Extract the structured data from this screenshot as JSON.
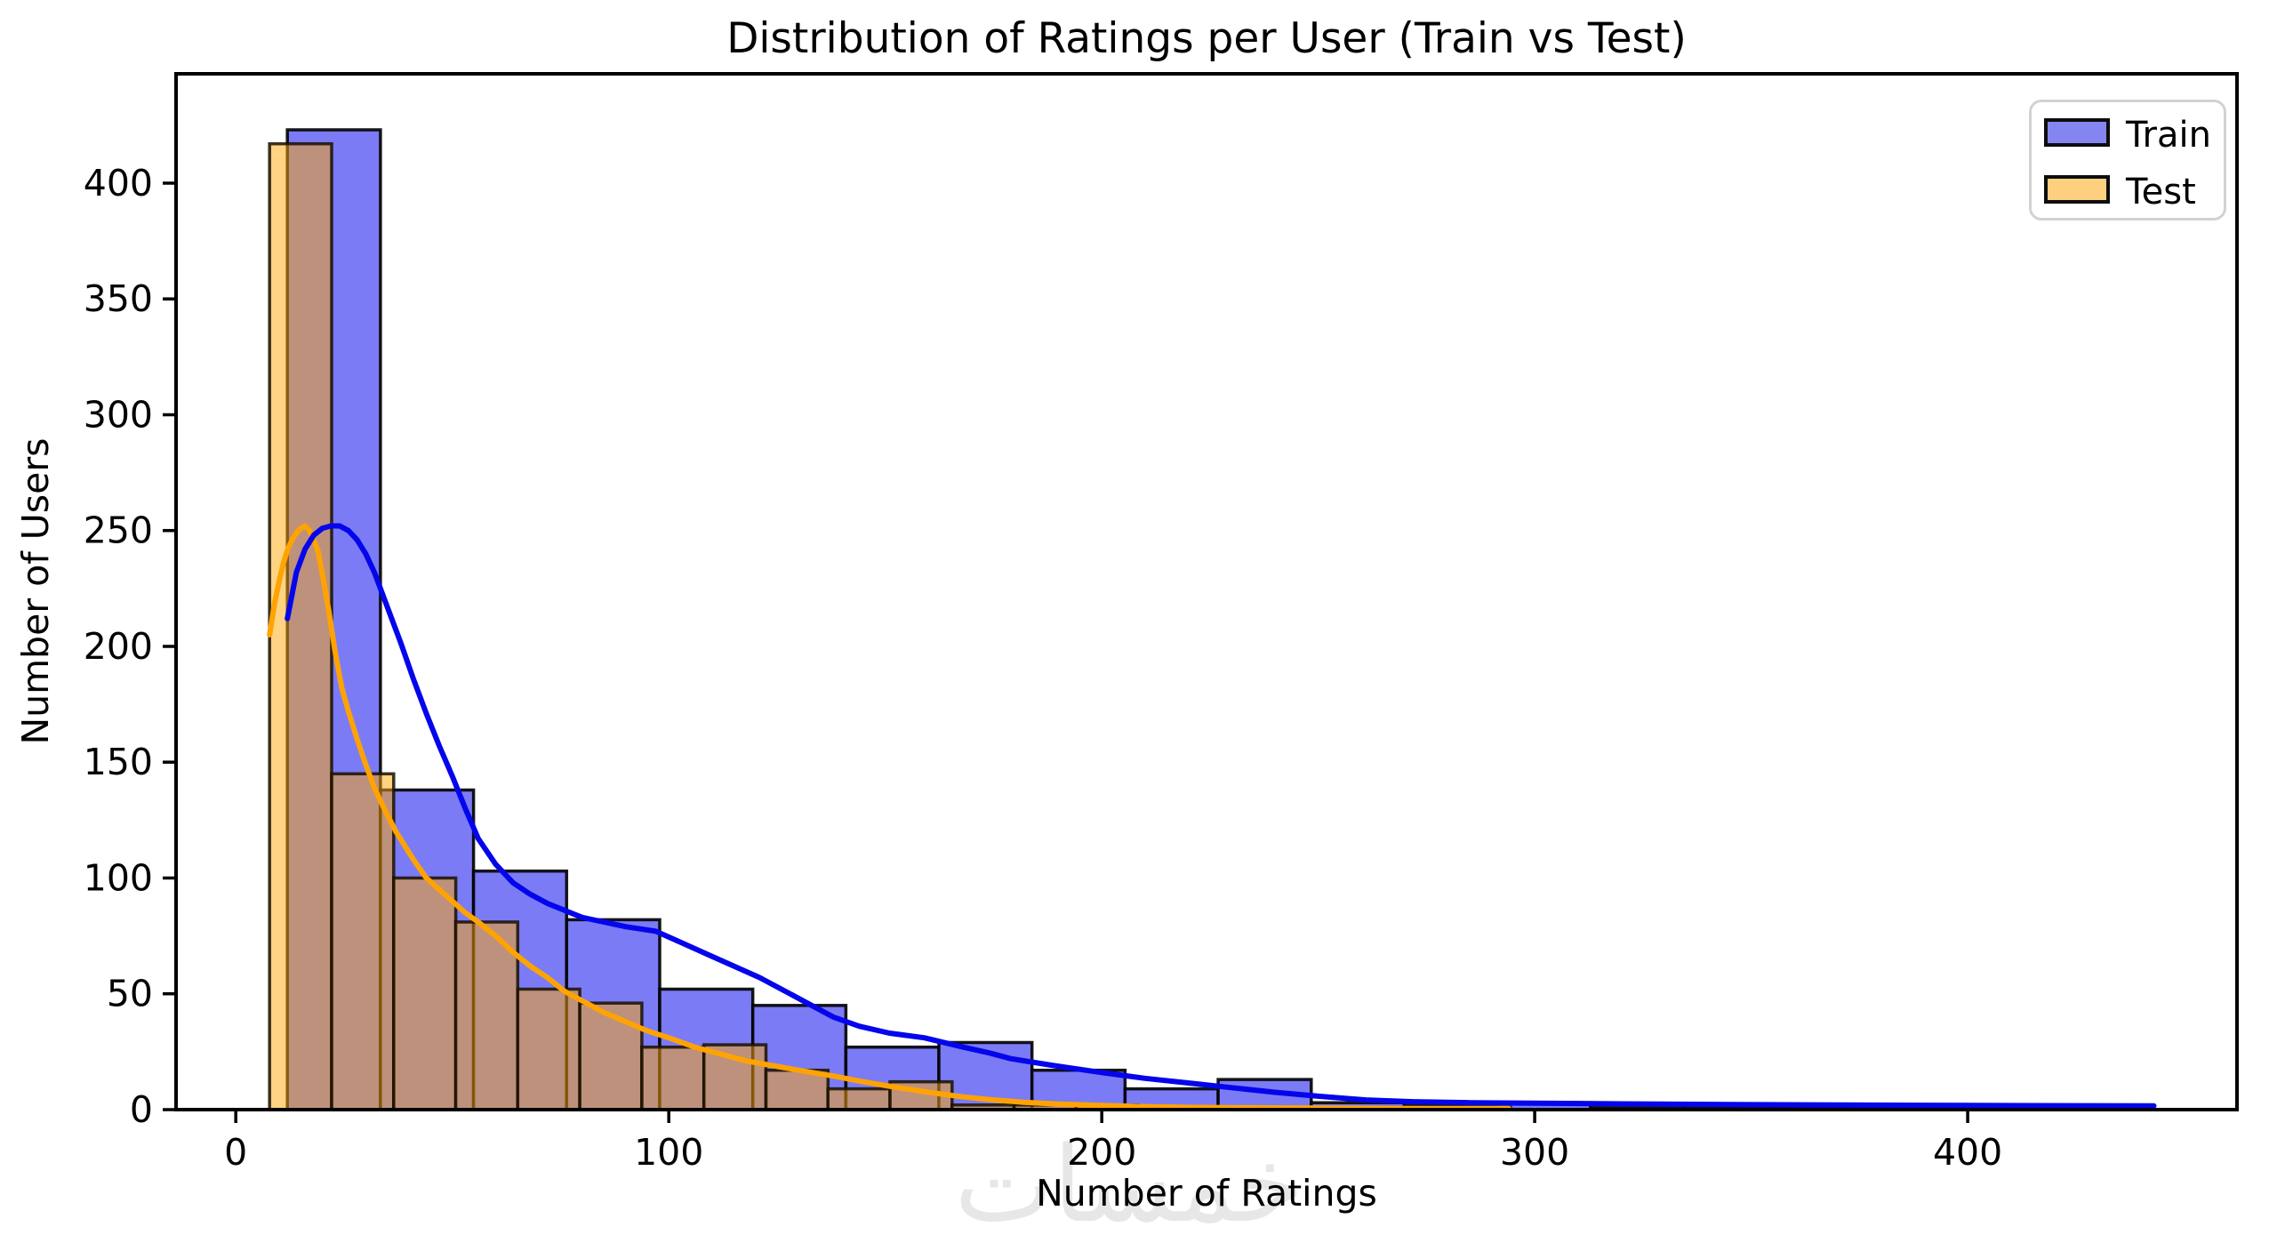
{
  "watermark": "خمسات",
  "chart_data": {
    "type": "histogram",
    "title": "Distribution of Ratings per User (Train vs Test)",
    "xlabel": "Number of Ratings",
    "ylabel": "Number of Users",
    "xlim": [
      -13.8,
      462.2
    ],
    "ylim": [
      0,
      447.2
    ],
    "xticks": [
      0,
      100,
      200,
      300,
      400
    ],
    "yticks": [
      0,
      50,
      100,
      150,
      200,
      250,
      300,
      350,
      400
    ],
    "grid": false,
    "legend_position": "upper right",
    "axis_color": "#000000",
    "series": [
      {
        "name": "Train",
        "kind": "hist+kde",
        "bin_start": 11.9,
        "bin_width": 21.5,
        "counts": [
          423,
          138,
          103,
          82,
          52,
          45,
          27,
          29,
          17,
          9,
          13,
          3,
          2,
          3,
          1,
          1,
          1,
          1,
          1,
          1
        ],
        "fill": "#7b7bf5",
        "edge": "rgba(0,0,0,0.9)",
        "line_color": "#0505ec",
        "swatch_fill": "#8585f2",
        "kde": [
          [
            11.9,
            212
          ],
          [
            14,
            232
          ],
          [
            16,
            242
          ],
          [
            18,
            248
          ],
          [
            20,
            251
          ],
          [
            22,
            252
          ],
          [
            24,
            252
          ],
          [
            26,
            250
          ],
          [
            28,
            246
          ],
          [
            30,
            240
          ],
          [
            32,
            232
          ],
          [
            34,
            222
          ],
          [
            36,
            212
          ],
          [
            38,
            202
          ],
          [
            41,
            186
          ],
          [
            44,
            171
          ],
          [
            47,
            157
          ],
          [
            50,
            144
          ],
          [
            53,
            130
          ],
          [
            56,
            117
          ],
          [
            60,
            106
          ],
          [
            64,
            98
          ],
          [
            68,
            93
          ],
          [
            72,
            89
          ],
          [
            76,
            86
          ],
          [
            80,
            83
          ],
          [
            85,
            81
          ],
          [
            90,
            79
          ],
          [
            97,
            77
          ],
          [
            103,
            72
          ],
          [
            109,
            67
          ],
          [
            115,
            62
          ],
          [
            121,
            57
          ],
          [
            127,
            51
          ],
          [
            133,
            45
          ],
          [
            138,
            40
          ],
          [
            144,
            36
          ],
          [
            151,
            33
          ],
          [
            159,
            31
          ],
          [
            168,
            27
          ],
          [
            174,
            24.5
          ],
          [
            179,
            22
          ],
          [
            189,
            19
          ],
          [
            200,
            16
          ],
          [
            210,
            13.5
          ],
          [
            220,
            11.5
          ],
          [
            230,
            9.5
          ],
          [
            240,
            7.5
          ],
          [
            250,
            5.8
          ],
          [
            261,
            4.2
          ],
          [
            272,
            3.4
          ],
          [
            285,
            3
          ],
          [
            300,
            2.8
          ],
          [
            320,
            2.5
          ],
          [
            345,
            2.2
          ],
          [
            370,
            2
          ],
          [
            400,
            1.8
          ],
          [
            443,
            1.6
          ]
        ]
      },
      {
        "name": "Test",
        "kind": "hist+kde",
        "bin_start": 7.8,
        "bin_width": 14.33,
        "counts": [
          417,
          145,
          100,
          81,
          52,
          46,
          27,
          28,
          17,
          9,
          12,
          2,
          2,
          2,
          1,
          1,
          1,
          1,
          1,
          1
        ],
        "fill": "rgba(255,167,3,0.5)",
        "edge": "rgba(25,15,0,0.85)",
        "line_color": "#ffa303",
        "swatch_fill": "#fcd07e",
        "kde": [
          [
            7.8,
            205
          ],
          [
            9,
            219
          ],
          [
            10,
            228
          ],
          [
            11,
            236
          ],
          [
            12,
            242
          ],
          [
            13,
            246
          ],
          [
            14,
            249
          ],
          [
            15,
            251
          ],
          [
            16,
            252
          ],
          [
            17,
            250
          ],
          [
            18,
            246
          ],
          [
            19,
            241
          ],
          [
            20,
            231
          ],
          [
            21.5,
            215
          ],
          [
            23,
            197
          ],
          [
            24.5,
            182
          ],
          [
            26,
            172
          ],
          [
            28,
            160
          ],
          [
            30,
            149
          ],
          [
            32,
            139
          ],
          [
            34.5,
            129
          ],
          [
            37,
            120
          ],
          [
            39,
            114
          ],
          [
            41,
            108
          ],
          [
            44,
            100
          ],
          [
            47,
            95
          ],
          [
            50,
            90
          ],
          [
            53,
            85
          ],
          [
            56,
            81
          ],
          [
            60,
            75
          ],
          [
            64,
            68
          ],
          [
            68,
            62
          ],
          [
            72,
            57
          ],
          [
            76,
            51
          ],
          [
            80,
            47
          ],
          [
            85,
            42
          ],
          [
            90,
            38
          ],
          [
            95,
            34
          ],
          [
            100,
            31
          ],
          [
            106,
            27
          ],
          [
            112,
            24
          ],
          [
            118,
            21
          ],
          [
            124,
            19
          ],
          [
            130,
            17
          ],
          [
            138,
            14.5
          ],
          [
            145,
            12
          ],
          [
            152,
            9.8
          ],
          [
            160,
            7.5
          ],
          [
            168,
            5.5
          ],
          [
            175,
            4.2
          ],
          [
            182,
            3.2
          ],
          [
            190,
            2.4
          ],
          [
            200,
            1.8
          ],
          [
            210,
            1.3
          ],
          [
            220,
            1
          ],
          [
            235,
            0.8
          ],
          [
            255,
            0.6
          ],
          [
            275,
            0.5
          ],
          [
            294,
            0.45
          ]
        ]
      }
    ]
  }
}
